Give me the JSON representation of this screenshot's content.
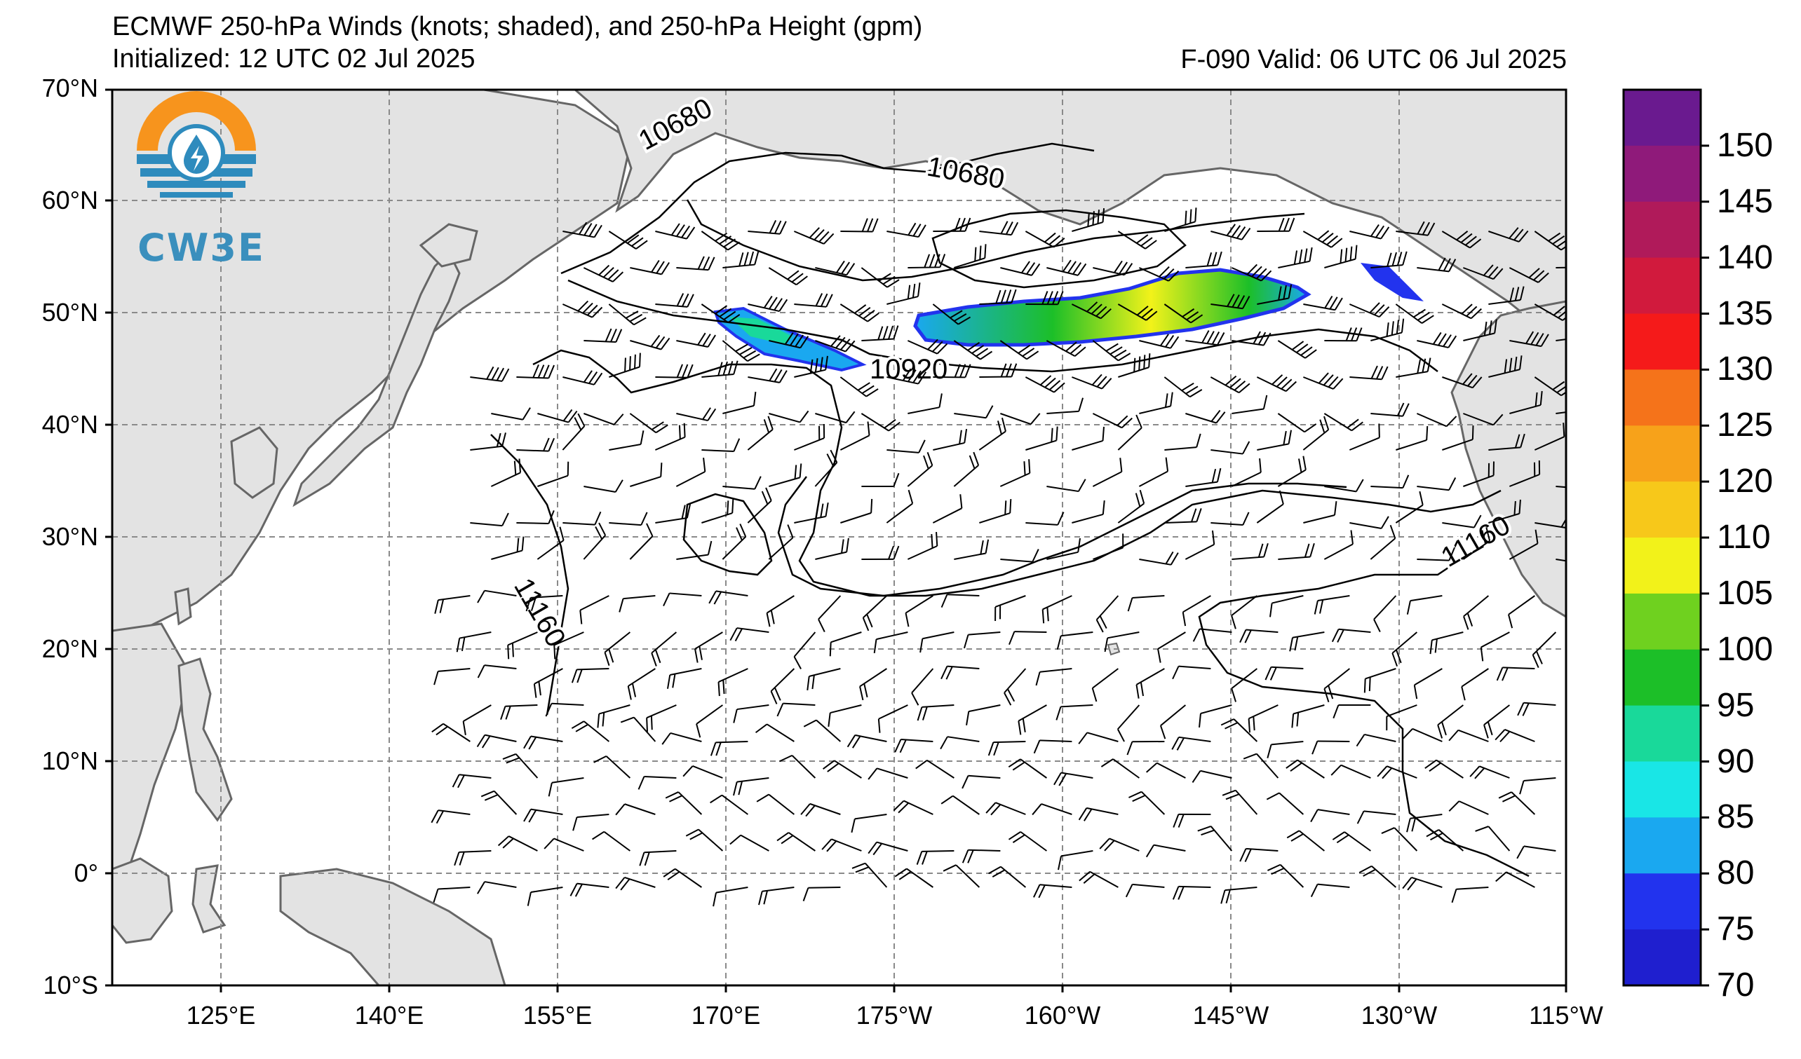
{
  "header": {
    "title": "ECMWF 250-hPa Winds (knots; shaded), and 250-hPa Height (gpm)",
    "initialized": "Initialized: 12 UTC 02 Jul 2025",
    "valid": "F-090  Valid: 06 UTC 06 Jul 2025"
  },
  "logo": {
    "text": "CW3E",
    "colors": {
      "sun": "#f7941d",
      "water": "#2e8bbd"
    }
  },
  "axes": {
    "lat_labels": [
      "70°N",
      "60°N",
      "50°N",
      "40°N",
      "30°N",
      "20°N",
      "10°N",
      "0°",
      "10°S"
    ],
    "lon_labels": [
      "125°E",
      "140°E",
      "155°E",
      "170°E",
      "175°W",
      "160°W",
      "145°W",
      "130°W",
      "115°W"
    ]
  },
  "contours": {
    "labels": [
      "10680",
      "10680",
      "10920",
      "11160",
      "11160"
    ]
  },
  "colorbar": {
    "ticks": [
      "70",
      "75",
      "80",
      "85",
      "90",
      "95",
      "100",
      "105",
      "110",
      "120",
      "125",
      "130",
      "135",
      "140",
      "145",
      "150"
    ],
    "colors": [
      "#1f1fcf",
      "#2233ee",
      "#1aa8f0",
      "#19e6e6",
      "#19d99a",
      "#1cbf28",
      "#6fd11f",
      "#f2f21a",
      "#f7c81a",
      "#f7a21a",
      "#f5731a",
      "#f51a1a",
      "#d11a3d",
      "#b01a5a",
      "#8f1a7a",
      "#6a1a8f"
    ]
  },
  "map_colors": {
    "land": "#e3e3e3",
    "coast": "#666666",
    "grid": "#8a8a8a"
  }
}
